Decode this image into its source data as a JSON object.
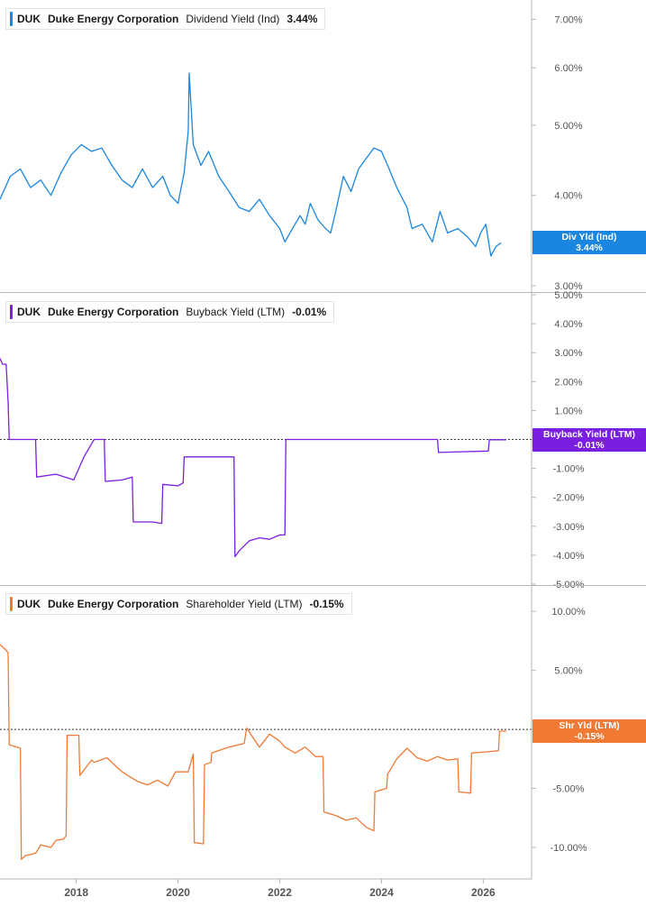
{
  "x_axis": {
    "ticks": [
      "2018",
      "2020",
      "2022",
      "2024",
      "2026"
    ]
  },
  "colors": {
    "dividend": "#1a86e0",
    "buyback": "#7a1fe0",
    "shareholder": "#f07a34",
    "axis": "#b5b5b5"
  },
  "chart_data": [
    {
      "type": "line",
      "ticker": "DUK",
      "company": "Duke Energy Corporation",
      "metric": "Dividend Yield (Ind)",
      "value_label": "3.44%",
      "flag": {
        "label": "Div Yld (Ind)",
        "value": "3.44%"
      },
      "yscale": "log",
      "ylim": [
        2.95,
        7.4
      ],
      "yticks": [
        3,
        4,
        5,
        6,
        7
      ],
      "ytick_labels": [
        "3.00%",
        "4.00%",
        "5.00%",
        "6.00%",
        "7.00%"
      ],
      "zero_line": false,
      "series": [
        {
          "color": "#1a86e0",
          "x": [
            2016.5,
            2016.7,
            2016.9,
            2017.1,
            2017.3,
            2017.5,
            2017.7,
            2017.9,
            2018.1,
            2018.3,
            2018.5,
            2018.7,
            2018.9,
            2019.1,
            2019.3,
            2019.5,
            2019.7,
            2019.85,
            2020.0,
            2020.12,
            2020.2,
            2020.22,
            2020.3,
            2020.45,
            2020.6,
            2020.8,
            2021.0,
            2021.2,
            2021.4,
            2021.6,
            2021.8,
            2022.0,
            2022.1,
            2022.25,
            2022.4,
            2022.5,
            2022.6,
            2022.75,
            2022.9,
            2023.0,
            2023.1,
            2023.25,
            2023.4,
            2023.55,
            2023.7,
            2023.85,
            2024.0,
            2024.15,
            2024.3,
            2024.5,
            2024.6,
            2024.8,
            2025.0,
            2025.15,
            2025.3,
            2025.5,
            2025.7,
            2025.85,
            2025.95,
            2026.05,
            2026.15,
            2026.25,
            2026.35
          ],
          "y": [
            3.95,
            4.25,
            4.35,
            4.1,
            4.2,
            4.0,
            4.3,
            4.55,
            4.7,
            4.6,
            4.65,
            4.4,
            4.2,
            4.1,
            4.35,
            4.1,
            4.25,
            4.0,
            3.9,
            4.3,
            4.9,
            5.9,
            4.7,
            4.4,
            4.6,
            4.25,
            4.05,
            3.85,
            3.8,
            3.95,
            3.75,
            3.6,
            3.45,
            3.6,
            3.75,
            3.65,
            3.9,
            3.7,
            3.6,
            3.55,
            3.8,
            4.25,
            4.05,
            4.35,
            4.5,
            4.65,
            4.6,
            4.35,
            4.1,
            3.85,
            3.6,
            3.65,
            3.45,
            3.8,
            3.55,
            3.6,
            3.5,
            3.4,
            3.55,
            3.65,
            3.3,
            3.4,
            3.44
          ]
        }
      ]
    },
    {
      "type": "line",
      "ticker": "DUK",
      "company": "Duke Energy Corporation",
      "metric": "Buyback Yield (LTM)",
      "value_label": "-0.01%",
      "flag": {
        "label": "Buyback Yield (LTM)",
        "value": "-0.01%"
      },
      "yscale": "linear",
      "ylim": [
        -5.0,
        5.0
      ],
      "yticks": [
        -5,
        -4,
        -3,
        -2,
        -1,
        0,
        1,
        2,
        3,
        4,
        5
      ],
      "ytick_labels": [
        "-5.00%",
        "-4.00%",
        "-3.00%",
        "-2.00%",
        "-1.00%",
        "",
        "1.00%",
        "2.00%",
        "3.00%",
        "4.00%",
        "5.00%"
      ],
      "zero_line": true,
      "series": [
        {
          "color": "#7a1fe0",
          "x": [
            2016.5,
            2016.55,
            2016.62,
            2016.66,
            2016.68,
            2017.2,
            2017.22,
            2017.6,
            2017.95,
            2018.15,
            2018.35,
            2018.55,
            2018.57,
            2018.9,
            2019.1,
            2019.12,
            2019.5,
            2019.68,
            2019.7,
            2020.0,
            2020.1,
            2020.12,
            2021.1,
            2021.12,
            2021.2,
            2021.4,
            2021.6,
            2021.8,
            2022.0,
            2022.1,
            2022.12,
            2025.1,
            2025.12,
            2026.1,
            2026.12,
            2026.45
          ],
          "y": [
            2.8,
            2.6,
            2.6,
            1.3,
            0.0,
            0.0,
            -1.3,
            -1.2,
            -1.4,
            -0.6,
            0.0,
            0.0,
            -1.45,
            -1.4,
            -1.3,
            -2.85,
            -2.85,
            -2.9,
            -1.55,
            -1.6,
            -1.5,
            -0.6,
            -0.6,
            -4.05,
            -3.85,
            -3.5,
            -3.4,
            -3.45,
            -3.3,
            -3.3,
            0.0,
            0.0,
            -0.45,
            -0.4,
            -0.01,
            -0.01
          ]
        }
      ]
    },
    {
      "type": "line",
      "ticker": "DUK",
      "company": "Duke Energy Corporation",
      "metric": "Shareholder Yield (LTM)",
      "value_label": "-0.15%",
      "flag": {
        "label": "Shr Yld (LTM)",
        "value": "-0.15%"
      },
      "yscale": "linear",
      "ylim": [
        -12.6,
        12.0
      ],
      "yticks": [
        -10,
        -5,
        0,
        5,
        10
      ],
      "ytick_labels": [
        "-10.00%",
        "-5.00%",
        "0.00%",
        "5.00%",
        "10.00%"
      ],
      "zero_line": true,
      "series": [
        {
          "color": "#f07a34",
          "x": [
            2016.5,
            2016.6,
            2016.66,
            2016.68,
            2016.9,
            2016.92,
            2017.0,
            2017.2,
            2017.3,
            2017.5,
            2017.6,
            2017.75,
            2017.8,
            2017.82,
            2018.05,
            2018.07,
            2018.3,
            2018.35,
            2018.6,
            2018.9,
            2019.2,
            2019.4,
            2019.6,
            2019.8,
            2019.95,
            2020.2,
            2020.3,
            2020.32,
            2020.5,
            2020.52,
            2020.65,
            2020.66,
            2021.0,
            2021.3,
            2021.35,
            2021.6,
            2021.8,
            2022.0,
            2022.1,
            2022.3,
            2022.5,
            2022.7,
            2022.85,
            2022.87,
            2023.1,
            2023.3,
            2023.5,
            2023.7,
            2023.85,
            2023.87,
            2024.1,
            2024.12,
            2024.3,
            2024.5,
            2024.7,
            2024.9,
            2025.1,
            2025.3,
            2025.5,
            2025.52,
            2025.75,
            2025.77,
            2026.1,
            2026.3,
            2026.32,
            2026.45
          ],
          "y": [
            7.2,
            6.8,
            6.5,
            -1.3,
            -1.6,
            -11.0,
            -10.7,
            -10.5,
            -9.8,
            -10.0,
            -9.4,
            -9.3,
            -9.0,
            -0.5,
            -0.5,
            -3.9,
            -2.6,
            -2.8,
            -2.4,
            -3.6,
            -4.4,
            -4.7,
            -4.3,
            -4.8,
            -3.6,
            -3.6,
            -2.1,
            -9.6,
            -9.7,
            -3.0,
            -2.8,
            -2.0,
            -1.5,
            -1.2,
            0.1,
            -1.5,
            -0.4,
            -1.0,
            -1.5,
            -2.0,
            -1.5,
            -2.3,
            -2.3,
            -7.0,
            -7.3,
            -7.7,
            -7.5,
            -8.3,
            -8.6,
            -5.3,
            -5.0,
            -3.8,
            -2.5,
            -1.6,
            -2.4,
            -2.7,
            -2.3,
            -2.6,
            -2.5,
            -5.3,
            -5.4,
            -2.0,
            -1.9,
            -1.8,
            -0.15,
            -0.15
          ]
        }
      ]
    }
  ]
}
